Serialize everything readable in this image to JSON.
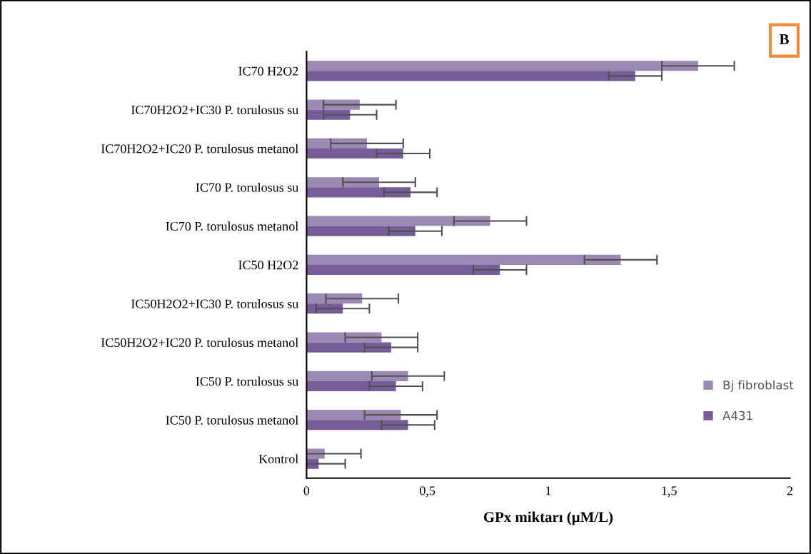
{
  "chart_data": {
    "type": "bar",
    "orientation": "horizontal",
    "xlabel": "GPx miktarı (µM/L)",
    "categories": [
      "IC70 H2O2",
      "IC70H2O2+IC30 P. torulosus su",
      "IC70H2O2+IC20 P. torulosus metanol",
      "IC70 P. torulosus su",
      "IC70 P. torulosus metanol",
      "IC50 H2O2",
      "IC50H2O2+IC30 P. torulosus su",
      "IC50H2O2+IC20 P. torulosus metanol",
      "IC50 P. torulosus su",
      "IC50 P. torulosus metanol",
      "Kontrol"
    ],
    "series": [
      {
        "name": "Bj fibroblast",
        "color": "#9b89b4",
        "values": [
          1.62,
          0.22,
          0.25,
          0.3,
          0.76,
          1.3,
          0.23,
          0.31,
          0.42,
          0.39,
          0.075
        ],
        "errors": [
          0.15,
          0.15,
          0.15,
          0.15,
          0.15,
          0.15,
          0.15,
          0.15,
          0.15,
          0.15,
          0.15
        ]
      },
      {
        "name": "A431",
        "color": "#765c99",
        "values": [
          1.36,
          0.18,
          0.4,
          0.43,
          0.45,
          0.8,
          0.15,
          0.35,
          0.37,
          0.42,
          0.05
        ],
        "errors": [
          0.11,
          0.11,
          0.11,
          0.11,
          0.11,
          0.11,
          0.11,
          0.11,
          0.11,
          0.11,
          0.11
        ]
      }
    ],
    "xlim": [
      0,
      2
    ],
    "xticks": [
      0,
      {
        "value": 0.5,
        "label": "0,5"
      },
      1,
      {
        "value": 1.5,
        "label": "1,5"
      },
      2
    ],
    "grid": false,
    "legend": "right",
    "annotations": [
      "B"
    ]
  }
}
